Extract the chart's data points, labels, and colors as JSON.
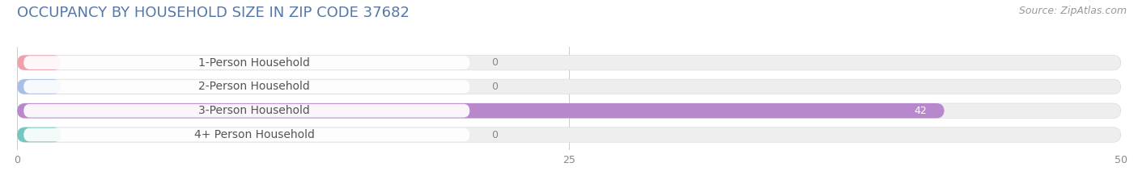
{
  "title": "OCCUPANCY BY HOUSEHOLD SIZE IN ZIP CODE 37682",
  "source": "Source: ZipAtlas.com",
  "categories": [
    "1-Person Household",
    "2-Person Household",
    "3-Person Household",
    "4+ Person Household"
  ],
  "values": [
    0,
    0,
    42,
    0
  ],
  "bar_colors": [
    "#f0a0a8",
    "#a8c0e8",
    "#b888cc",
    "#70c8c0"
  ],
  "xlim": [
    0,
    50
  ],
  "xticks": [
    0,
    25,
    50
  ],
  "title_fontsize": 13,
  "source_fontsize": 9,
  "label_fontsize": 10,
  "value_fontsize": 9,
  "bar_height": 0.62,
  "background_color": "#ffffff",
  "label_box_color": "#ffffff",
  "bar_bg_color": "#eeeeee",
  "grid_color": "#cccccc",
  "text_color": "#555555",
  "title_color": "#5577aa"
}
